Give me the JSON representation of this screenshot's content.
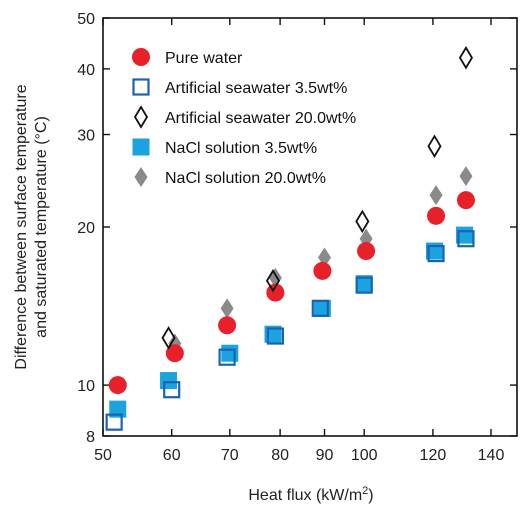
{
  "chart_data": {
    "type": "scatter",
    "x_scale": "log",
    "y_scale": "log",
    "xlim": [
      50,
      150
    ],
    "ylim": [
      8,
      50
    ],
    "xticks": [
      50,
      60,
      70,
      80,
      90,
      100,
      120,
      140
    ],
    "yticks": [
      8,
      10,
      20,
      30,
      40,
      50
    ],
    "xlabel": "Heat flux (kW/m",
    "xlabel_sup": "2",
    "xlabel_end": ")",
    "ylabel_line1": "Difference between surface temperature",
    "ylabel_line2": "and saturated temperature (°C)",
    "legend_position": "top-left",
    "grid": false,
    "series": [
      {
        "name": "Pure water",
        "marker": "circle-filled",
        "color": "#e8202a",
        "points": [
          [
            52,
            10.0
          ],
          [
            60.5,
            11.5
          ],
          [
            69.5,
            13.0
          ],
          [
            79,
            15.0
          ],
          [
            89.5,
            16.5
          ],
          [
            100.5,
            18.0
          ],
          [
            121,
            21.0
          ],
          [
            131,
            22.5
          ]
        ]
      },
      {
        "name": "Artificial seawater 3.5wt%",
        "marker": "square-open",
        "color": "#1a63b0",
        "points": [
          [
            51.5,
            8.5
          ],
          [
            60,
            9.8
          ],
          [
            69.5,
            11.3
          ],
          [
            79,
            12.4
          ],
          [
            89,
            14.0
          ],
          [
            100,
            15.5
          ],
          [
            121,
            17.8
          ],
          [
            131,
            19.0
          ]
        ]
      },
      {
        "name": "Artificial seawater 20.0wt%",
        "marker": "diamond-open",
        "color": "#111111",
        "points": [
          [
            59.5,
            12.3
          ],
          [
            78.5,
            15.8
          ],
          [
            99.5,
            20.5
          ],
          [
            120.5,
            28.5
          ],
          [
            131,
            42.0
          ]
        ]
      },
      {
        "name": "NaCl solution 3.5wt%",
        "marker": "square-filled",
        "color": "#1aa3df",
        "points": [
          [
            52,
            9.0
          ],
          [
            59.5,
            10.2
          ],
          [
            70,
            11.5
          ],
          [
            78.5,
            12.5
          ],
          [
            89.5,
            14.0
          ],
          [
            100,
            15.6
          ],
          [
            120.5,
            18.0
          ],
          [
            130.5,
            19.3
          ]
        ]
      },
      {
        "name": "NaCl solution 20.0wt%",
        "marker": "diamond-filled",
        "color": "#8a8a8a",
        "points": [
          [
            60.5,
            12.0
          ],
          [
            69.5,
            14.0
          ],
          [
            79,
            16.0
          ],
          [
            90,
            17.5
          ],
          [
            100.5,
            19.0
          ],
          [
            121,
            23.0
          ],
          [
            131,
            25.0
          ]
        ]
      }
    ]
  }
}
